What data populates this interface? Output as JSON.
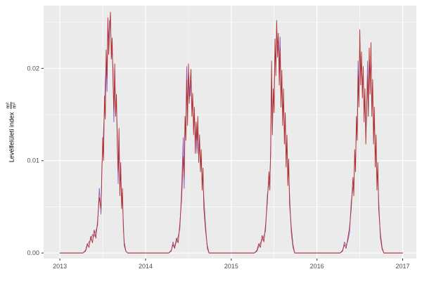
{
  "chart_data": {
    "type": "line",
    "title": "",
    "xlabel": "",
    "ylabel": "Levélfelületi index",
    "ylabel_fraction": {
      "numerator": "m²",
      "denominator": "m²"
    },
    "legend": "none",
    "grid": true,
    "panel_background": "#ebebeb",
    "grid_color": "#ffffff",
    "tick_label_color": "#4d4d4d",
    "tick_mark_color": "#333333",
    "xlim": [
      2012.81,
      2017.16
    ],
    "ylim": [
      -0.0006,
      0.0268
    ],
    "x_ticks": [
      {
        "value": 2013,
        "label": "2013"
      },
      {
        "value": 2014,
        "label": "2014"
      },
      {
        "value": 2015,
        "label": "2015"
      },
      {
        "value": 2016,
        "label": "2016"
      },
      {
        "value": 2017,
        "label": "2017"
      }
    ],
    "x_minor_ticks": [
      2013.5,
      2014.5,
      2015.5,
      2016.5
    ],
    "y_ticks": [
      {
        "value": 0.0,
        "label": "0.00"
      },
      {
        "value": 0.01,
        "label": "0.01"
      },
      {
        "value": 0.02,
        "label": "0.02"
      }
    ],
    "y_minor_ticks": [
      0.005,
      0.015,
      0.025
    ],
    "series": [
      {
        "name": "series-red",
        "color": "#b2302e"
      },
      {
        "name": "series-purple",
        "color": "#8c57c0"
      }
    ],
    "points": [
      [
        2013.0,
        0,
        0
      ],
      [
        2013.27,
        0,
        0
      ],
      [
        2013.3,
        0.0003,
        0.0002
      ],
      [
        2013.32,
        0.001,
        0.0008
      ],
      [
        2013.34,
        0.0006,
        0.0012
      ],
      [
        2013.36,
        0.0018,
        0.0014
      ],
      [
        2013.38,
        0.0011,
        0.002
      ],
      [
        2013.4,
        0.0025,
        0.0018
      ],
      [
        2013.42,
        0.0016,
        0.0024
      ],
      [
        2013.44,
        0.0035,
        0.003
      ],
      [
        2013.46,
        0.006,
        0.007
      ],
      [
        2013.48,
        0.0048,
        0.0042
      ],
      [
        2013.49,
        0.0085,
        0.0095
      ],
      [
        2013.5,
        0.0125,
        0.011
      ],
      [
        2013.51,
        0.01,
        0.0135
      ],
      [
        2013.52,
        0.017,
        0.0155
      ],
      [
        2013.53,
        0.0145,
        0.0185
      ],
      [
        2013.54,
        0.022,
        0.0205
      ],
      [
        2013.55,
        0.019,
        0.0175
      ],
      [
        2013.56,
        0.0255,
        0.0243
      ],
      [
        2013.57,
        0.0215,
        0.023
      ],
      [
        2013.58,
        0.0242,
        0.0252
      ],
      [
        2013.59,
        0.0261,
        0.0248
      ],
      [
        2013.6,
        0.021,
        0.0225
      ],
      [
        2013.61,
        0.0233,
        0.0215
      ],
      [
        2013.62,
        0.0185,
        0.02
      ],
      [
        2013.63,
        0.0155,
        0.0142
      ],
      [
        2013.64,
        0.0205,
        0.019
      ],
      [
        2013.65,
        0.0148,
        0.0162
      ],
      [
        2013.66,
        0.0172,
        0.0158
      ],
      [
        2013.67,
        0.0115,
        0.013
      ],
      [
        2013.68,
        0.0088,
        0.0075
      ],
      [
        2013.69,
        0.0135,
        0.012
      ],
      [
        2013.7,
        0.0062,
        0.0078
      ],
      [
        2013.71,
        0.0098,
        0.0085
      ],
      [
        2013.72,
        0.0048,
        0.006
      ],
      [
        2013.73,
        0.007,
        0.0055
      ],
      [
        2013.74,
        0.0028,
        0.0035
      ],
      [
        2013.75,
        0.0012,
        0.0008
      ],
      [
        2013.77,
        0.0002,
        0.0002
      ],
      [
        2013.79,
        0,
        0
      ],
      [
        2014.27,
        0,
        0
      ],
      [
        2014.3,
        0.0003,
        0.0002
      ],
      [
        2014.32,
        0.0009,
        0.0012
      ],
      [
        2014.34,
        0.0005,
        0.0007
      ],
      [
        2014.36,
        0.0016,
        0.0012
      ],
      [
        2014.38,
        0.0011,
        0.0018
      ],
      [
        2014.4,
        0.0032,
        0.0026
      ],
      [
        2014.42,
        0.0058,
        0.0068
      ],
      [
        2014.44,
        0.0105,
        0.0125
      ],
      [
        2014.45,
        0.0082,
        0.007
      ],
      [
        2014.46,
        0.0148,
        0.0135
      ],
      [
        2014.47,
        0.0122,
        0.014
      ],
      [
        2014.48,
        0.0188,
        0.0202
      ],
      [
        2014.49,
        0.0138,
        0.0152
      ],
      [
        2014.5,
        0.0205,
        0.0195
      ],
      [
        2014.51,
        0.0162,
        0.0178
      ],
      [
        2014.52,
        0.0184,
        0.017
      ],
      [
        2014.53,
        0.0199,
        0.0188
      ],
      [
        2014.54,
        0.0148,
        0.0162
      ],
      [
        2014.55,
        0.0173,
        0.016
      ],
      [
        2014.56,
        0.0128,
        0.0142
      ],
      [
        2014.57,
        0.0158,
        0.0145
      ],
      [
        2014.58,
        0.0108,
        0.0122
      ],
      [
        2014.59,
        0.0142,
        0.013
      ],
      [
        2014.6,
        0.0122,
        0.0108
      ],
      [
        2014.61,
        0.0148,
        0.0136
      ],
      [
        2014.62,
        0.0098,
        0.0112
      ],
      [
        2014.63,
        0.0128,
        0.0115
      ],
      [
        2014.64,
        0.0088,
        0.01
      ],
      [
        2014.65,
        0.0112,
        0.0098
      ],
      [
        2014.66,
        0.0068,
        0.008
      ],
      [
        2014.67,
        0.0092,
        0.0078
      ],
      [
        2014.68,
        0.0048,
        0.006
      ],
      [
        2014.7,
        0.0024,
        0.003
      ],
      [
        2014.72,
        0.0008,
        0.0005
      ],
      [
        2014.74,
        0,
        0
      ],
      [
        2015.27,
        0,
        0
      ],
      [
        2015.3,
        0.0003,
        0.0002
      ],
      [
        2015.32,
        0.001,
        0.0007
      ],
      [
        2015.34,
        0.0006,
        0.0011
      ],
      [
        2015.36,
        0.0019,
        0.0014
      ],
      [
        2015.38,
        0.0012,
        0.0018
      ],
      [
        2015.4,
        0.003,
        0.0024
      ],
      [
        2015.42,
        0.0054,
        0.0062
      ],
      [
        2015.44,
        0.0088,
        0.0076
      ],
      [
        2015.45,
        0.0068,
        0.0082
      ],
      [
        2015.46,
        0.0118,
        0.0105
      ],
      [
        2015.47,
        0.0208,
        0.0184
      ],
      [
        2015.48,
        0.0128,
        0.0145
      ],
      [
        2015.49,
        0.0178,
        0.0165
      ],
      [
        2015.5,
        0.0152,
        0.017
      ],
      [
        2015.51,
        0.0232,
        0.0218
      ],
      [
        2015.52,
        0.0192,
        0.0205
      ],
      [
        2015.53,
        0.0252,
        0.0242
      ],
      [
        2015.54,
        0.0212,
        0.0228
      ],
      [
        2015.55,
        0.0238,
        0.0225
      ],
      [
        2015.56,
        0.0182,
        0.0198
      ],
      [
        2015.57,
        0.0222,
        0.0234
      ],
      [
        2015.58,
        0.0158,
        0.0172
      ],
      [
        2015.59,
        0.0198,
        0.0185
      ],
      [
        2015.6,
        0.0138,
        0.0152
      ],
      [
        2015.61,
        0.0178,
        0.0164
      ],
      [
        2015.62,
        0.0118,
        0.0132
      ],
      [
        2015.63,
        0.0152,
        0.014
      ],
      [
        2015.64,
        0.0093,
        0.0106
      ],
      [
        2015.65,
        0.0128,
        0.0115
      ],
      [
        2015.66,
        0.0073,
        0.0085
      ],
      [
        2015.67,
        0.0102,
        0.009
      ],
      [
        2015.68,
        0.0053,
        0.0064
      ],
      [
        2015.7,
        0.0028,
        0.0022
      ],
      [
        2015.72,
        0.0009,
        0.0006
      ],
      [
        2015.74,
        0,
        0
      ],
      [
        2016.27,
        0,
        0
      ],
      [
        2016.3,
        0.0003,
        0.0002
      ],
      [
        2016.32,
        0.0009,
        0.0012
      ],
      [
        2016.34,
        0.0005,
        0.0008
      ],
      [
        2016.36,
        0.0016,
        0.0013
      ],
      [
        2016.38,
        0.0028,
        0.0022
      ],
      [
        2016.4,
        0.0048,
        0.0056
      ],
      [
        2016.42,
        0.0082,
        0.007
      ],
      [
        2016.43,
        0.0062,
        0.0075
      ],
      [
        2016.44,
        0.0112,
        0.01
      ],
      [
        2016.45,
        0.0088,
        0.0102
      ],
      [
        2016.46,
        0.0148,
        0.0135
      ],
      [
        2016.47,
        0.0122,
        0.0138
      ],
      [
        2016.48,
        0.0192,
        0.0208
      ],
      [
        2016.49,
        0.0158,
        0.0172
      ],
      [
        2016.5,
        0.0242,
        0.023
      ],
      [
        2016.51,
        0.0182,
        0.0198
      ],
      [
        2016.52,
        0.0218,
        0.0205
      ],
      [
        2016.53,
        0.0168,
        0.0182
      ],
      [
        2016.54,
        0.0202,
        0.019
      ],
      [
        2016.55,
        0.0142,
        0.0158
      ],
      [
        2016.56,
        0.0178,
        0.0165
      ],
      [
        2016.57,
        0.0118,
        0.0132
      ],
      [
        2016.58,
        0.0158,
        0.0145
      ],
      [
        2016.59,
        0.0192,
        0.0208
      ],
      [
        2016.6,
        0.0148,
        0.0162
      ],
      [
        2016.61,
        0.0222,
        0.021
      ],
      [
        2016.62,
        0.0172,
        0.0188
      ],
      [
        2016.63,
        0.0228,
        0.0214
      ],
      [
        2016.64,
        0.0148,
        0.0164
      ],
      [
        2016.65,
        0.0188,
        0.0175
      ],
      [
        2016.66,
        0.0118,
        0.0132
      ],
      [
        2016.67,
        0.0158,
        0.0144
      ],
      [
        2016.68,
        0.0093,
        0.0106
      ],
      [
        2016.69,
        0.0128,
        0.0115
      ],
      [
        2016.7,
        0.0068,
        0.008
      ],
      [
        2016.71,
        0.0098,
        0.0085
      ],
      [
        2016.72,
        0.0048,
        0.0058
      ],
      [
        2016.74,
        0.0021,
        0.0016
      ],
      [
        2016.76,
        0.0006,
        0.0004
      ],
      [
        2016.78,
        0,
        0
      ],
      [
        2017.0,
        0,
        0
      ]
    ]
  }
}
